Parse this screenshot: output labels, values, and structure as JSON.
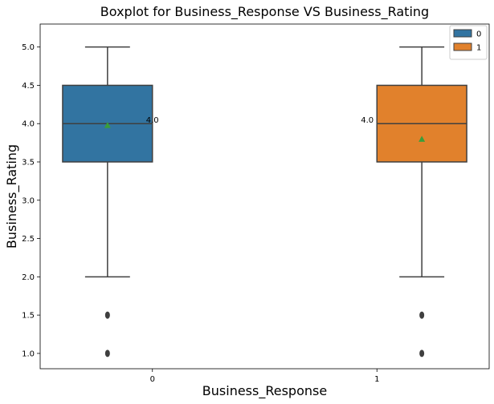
{
  "chart_data": {
    "type": "box",
    "title": "Boxplot for Business_Response VS Business_Rating",
    "xlabel": "Business_Response",
    "ylabel": "Business_Rating",
    "categories": [
      "0",
      "1"
    ],
    "ylim": [
      0.8,
      5.3
    ],
    "yticks": [
      "1.0",
      "1.5",
      "2.0",
      "2.5",
      "3.0",
      "3.5",
      "4.0",
      "4.5",
      "5.0"
    ],
    "legend": {
      "placement": "top-right",
      "entries": [
        "0",
        "1"
      ]
    },
    "grid": false,
    "series": [
      {
        "hue": "0",
        "color": "#3274a1",
        "category": "0",
        "whisker_low": 2.0,
        "q1": 3.5,
        "median": 4.0,
        "q3": 4.5,
        "whisker_high": 5.0,
        "mean": 3.98,
        "outliers": [
          1.0,
          1.5
        ],
        "median_label": "4.0"
      },
      {
        "hue": "1",
        "color": "#e1812c",
        "category": "1",
        "whisker_low": 2.0,
        "q1": 3.5,
        "median": 4.0,
        "q3": 4.5,
        "whisker_high": 5.0,
        "mean": 3.8,
        "outliers": [
          1.0,
          1.5
        ],
        "median_label": "4.0"
      }
    ],
    "mean_marker_color": "#3a9e3a"
  }
}
